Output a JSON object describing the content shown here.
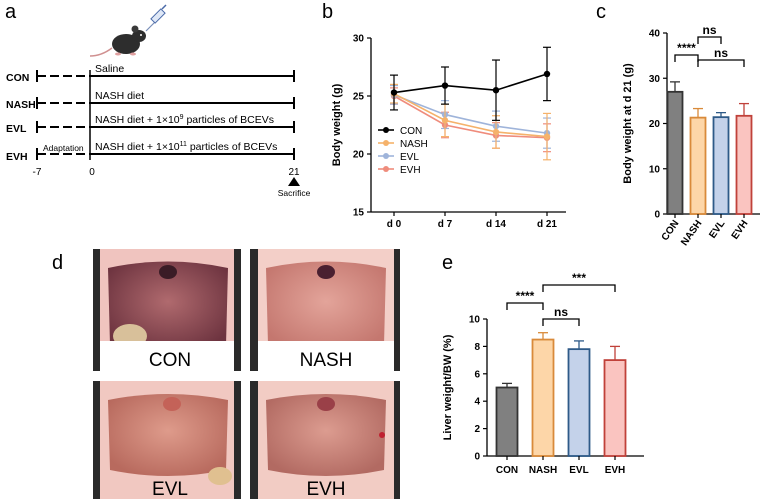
{
  "panel_letters": {
    "a": "a",
    "b": "b",
    "c": "c",
    "d": "d",
    "e": "e"
  },
  "panel_a": {
    "groups": [
      {
        "name": "CON",
        "treatment": "Saline"
      },
      {
        "name": "NASH",
        "treatment": "NASH diet"
      },
      {
        "name": "EVL",
        "treatment": "NASH diet + 1×10",
        "exp": "9",
        "tail": " particles of BCEVs"
      },
      {
        "name": "EVH",
        "treatment": "NASH diet + 1×10",
        "exp": "11",
        "tail": " particles of BCEVs"
      }
    ],
    "adaptation_label": "Adaptation",
    "timeline_ticks": [
      "-7",
      "0",
      "21"
    ],
    "sacrifice_label": "Sacrifice",
    "icons": [
      "mouse-icon",
      "syringe-icon",
      "sacrifice-triangle-icon"
    ]
  },
  "panel_d": {
    "labels": [
      "CON",
      "NASH",
      "EVL",
      "EVH"
    ]
  },
  "chart_data": [
    {
      "id": "b",
      "type": "line",
      "title": "",
      "xlabel": "",
      "ylabel": "Body weight (g)",
      "categories": [
        "d 0",
        "d 7",
        "d 14",
        "d 21"
      ],
      "ylim": [
        15,
        30
      ],
      "yticks": [
        15,
        20,
        25,
        30
      ],
      "legend_position": "lower-left",
      "series": [
        {
          "name": "CON",
          "color": "#000000",
          "values": [
            25.3,
            25.9,
            25.5,
            26.9
          ],
          "errors": [
            1.5,
            1.6,
            2.6,
            2.3
          ]
        },
        {
          "name": "NASH",
          "color": "#f5b26b",
          "values": [
            25.2,
            22.9,
            21.9,
            21.5
          ],
          "errors": [
            0.8,
            1.4,
            1.4,
            2.0
          ]
        },
        {
          "name": "EVL",
          "color": "#9fb4da",
          "values": [
            25.1,
            23.4,
            22.4,
            21.8
          ],
          "errors": [
            0.8,
            1.2,
            1.3,
            1.3
          ]
        },
        {
          "name": "EVH",
          "color": "#ef8c7c",
          "values": [
            25.0,
            22.5,
            21.6,
            21.4
          ],
          "errors": [
            0.7,
            1.1,
            1.1,
            1.2
          ]
        }
      ]
    },
    {
      "id": "c",
      "type": "bar",
      "title": "",
      "xlabel": "",
      "ylabel": "Body weight at d 21 (g)",
      "categories": [
        "CON",
        "NASH",
        "EVL",
        "EVH"
      ],
      "values": [
        27.0,
        21.3,
        21.4,
        21.7
      ],
      "errors": [
        2.2,
        2.0,
        1.0,
        2.7
      ],
      "fills": [
        "#808080",
        "#fdd6a8",
        "#c4d2ea",
        "#fac4c0"
      ],
      "edges": [
        "#333333",
        "#d98a3a",
        "#2e5a88",
        "#c0413a"
      ],
      "ylim": [
        0,
        40
      ],
      "yticks": [
        0,
        10,
        20,
        30,
        40
      ],
      "significance": [
        {
          "from": 0,
          "to": 1,
          "label": "****"
        },
        {
          "from": 1,
          "to": 2,
          "label": "ns"
        },
        {
          "from": 1,
          "to": 3,
          "label": "ns"
        }
      ]
    },
    {
      "id": "e",
      "type": "bar",
      "title": "",
      "xlabel": "",
      "ylabel": "Liver weight/BW (%)",
      "categories": [
        "CON",
        "NASH",
        "EVL",
        "EVH"
      ],
      "values": [
        5.0,
        8.5,
        7.8,
        7.0
      ],
      "errors": [
        0.3,
        0.5,
        0.6,
        1.0
      ],
      "fills": [
        "#808080",
        "#fdd6a8",
        "#c4d2ea",
        "#fac4c0"
      ],
      "edges": [
        "#333333",
        "#d98a3a",
        "#2e5a88",
        "#c0413a"
      ],
      "ylim": [
        0,
        10
      ],
      "yticks": [
        0,
        2,
        4,
        6,
        8,
        10
      ],
      "significance": [
        {
          "from": 0,
          "to": 1,
          "label": "****"
        },
        {
          "from": 1,
          "to": 2,
          "label": "ns"
        },
        {
          "from": 1,
          "to": 3,
          "label": "***"
        }
      ]
    }
  ]
}
